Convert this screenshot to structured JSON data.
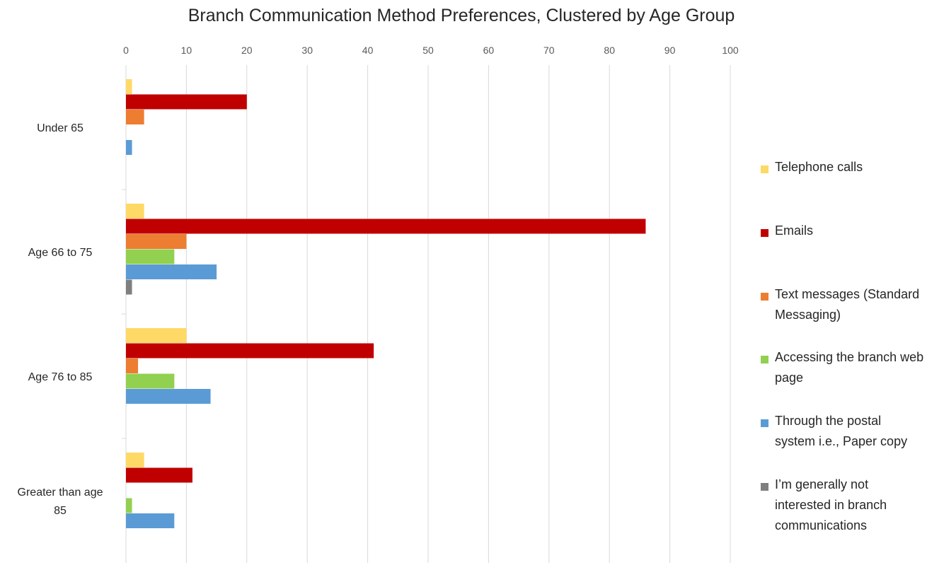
{
  "chart_data": {
    "type": "bar",
    "orientation": "horizontal",
    "title": "Branch Communication Method Preferences, Clustered by Age Group",
    "categories": [
      "Under 65",
      "Age 66 to 75",
      "Age 76 to 85",
      "Greater than age 85"
    ],
    "x_ticks": [
      "0",
      "10",
      "20",
      "30",
      "40",
      "50",
      "60",
      "70",
      "80",
      "90",
      "100"
    ],
    "xlim": [
      0,
      100
    ],
    "x_axis_position": "top",
    "grid": true,
    "legend_position": "right",
    "series": [
      {
        "name": "Telephone calls",
        "color": "#FFD966",
        "values": [
          1,
          3,
          10,
          3
        ]
      },
      {
        "name": "Emails",
        "color": "#C00000",
        "values": [
          20,
          86,
          41,
          11
        ]
      },
      {
        "name": "Text messages (Standard Messaging)",
        "color": "#ED7D31",
        "values": [
          3,
          10,
          2,
          0
        ]
      },
      {
        "name": "Accessing the branch web page",
        "color": "#92D050",
        "values": [
          0,
          8,
          8,
          1
        ]
      },
      {
        "name": "Through the postal system i.e., Paper copy",
        "color": "#5B9BD5",
        "values": [
          1,
          15,
          14,
          8
        ]
      },
      {
        "name": "I’m generally not interested in branch communications",
        "color": "#7F7F7F",
        "values": [
          0,
          1,
          0,
          0
        ]
      }
    ]
  }
}
